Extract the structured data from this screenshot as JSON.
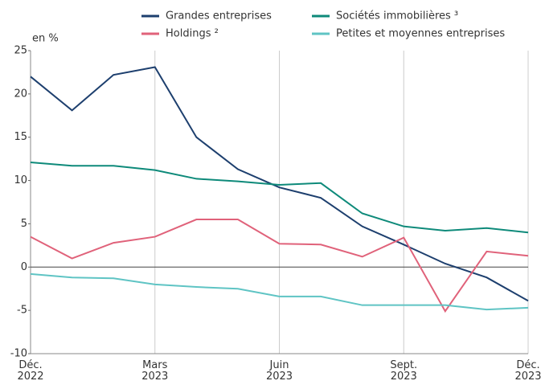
{
  "chart_data": {
    "type": "line",
    "y_label": "en %",
    "categories": [
      "Déc.\n2022",
      null,
      null,
      "Mars\n2023",
      null,
      null,
      "Juin\n2023",
      null,
      null,
      "Sept.\n2023",
      null,
      null,
      "Déc.\n2023"
    ],
    "series": [
      {
        "name": "Grandes entreprises",
        "color": "#1d3f6e",
        "values": [
          22,
          18.1,
          22.2,
          23.1,
          15,
          11.3,
          9.2,
          8,
          4.7,
          2.6,
          0.4,
          -1.2,
          -3.9
        ]
      },
      {
        "name": "Holdings ²",
        "color": "#e0627a",
        "values": [
          3.5,
          1.0,
          2.8,
          3.5,
          5.5,
          5.5,
          2.7,
          2.6,
          1.2,
          3.4,
          -5.1,
          1.8,
          1.3
        ]
      },
      {
        "name": "Sociétés immobilières ³",
        "color": "#0e8a7a",
        "values": [
          12.1,
          11.7,
          11.7,
          11.2,
          10.2,
          9.9,
          9.5,
          9.7,
          6.2,
          4.7,
          4.2,
          4.5,
          4.0
        ]
      },
      {
        "name": "Petites et moyennes entreprises",
        "color": "#5fc4c4",
        "values": [
          -0.8,
          -1.2,
          -1.3,
          -2.0,
          -2.3,
          -2.5,
          -3.4,
          -3.4,
          -4.4,
          -4.4,
          -4.4,
          -4.9,
          -4.7
        ]
      }
    ],
    "ylim": [
      -10,
      25
    ],
    "yticks": [
      -10,
      -5,
      0,
      5,
      10,
      15,
      20,
      25
    ],
    "grid": "x"
  }
}
